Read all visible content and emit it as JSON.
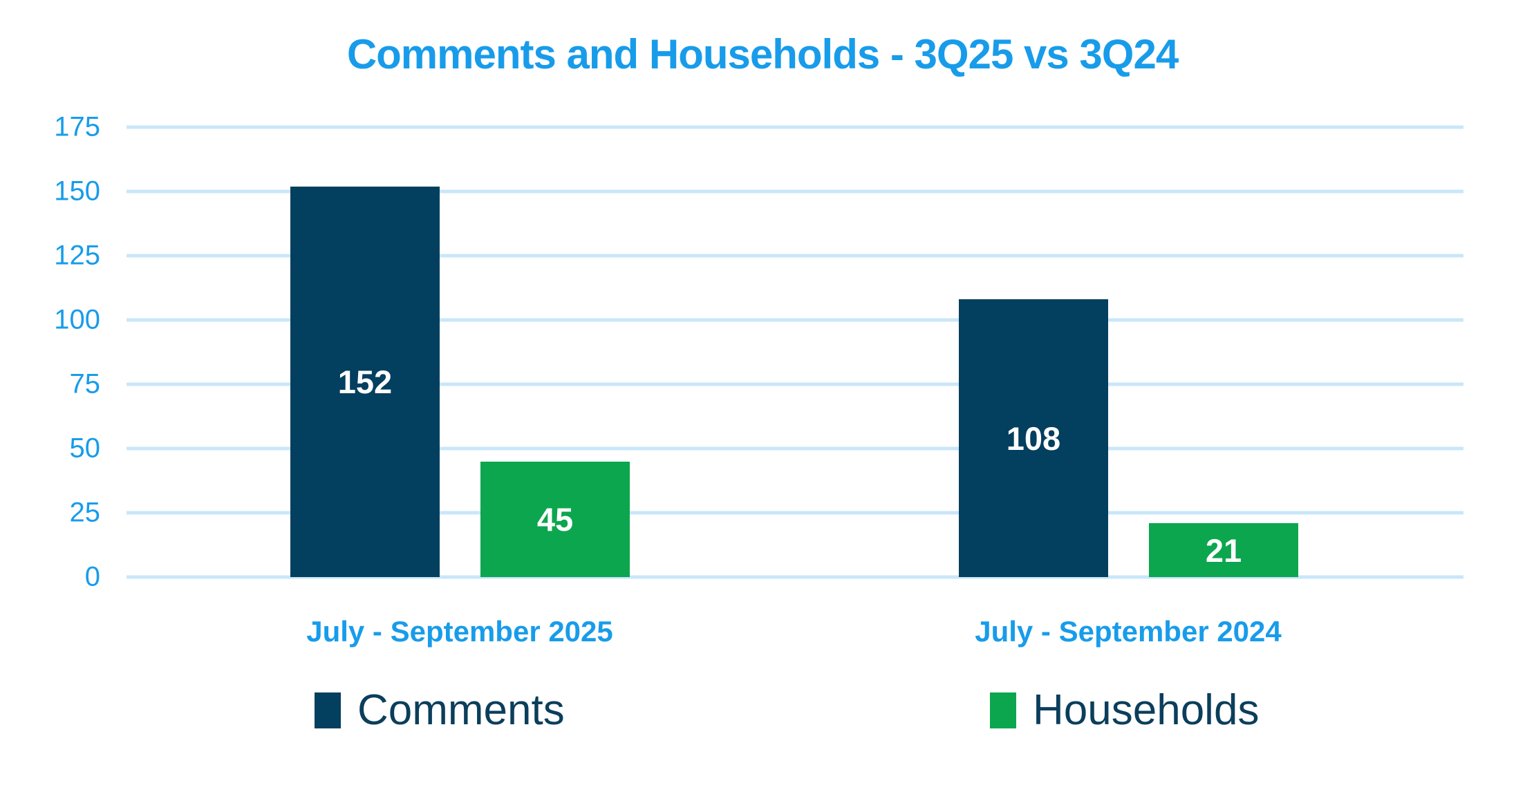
{
  "chart_data": {
    "type": "bar",
    "title": "Comments and Households - 3Q25 vs 3Q24",
    "categories": [
      "July - September 2025",
      "July - September 2024"
    ],
    "series": [
      {
        "name": "Comments",
        "color": "#033F5E",
        "values": [
          152,
          108
        ]
      },
      {
        "name": "Households",
        "color": "#0CA64E",
        "values": [
          45,
          21
        ]
      }
    ],
    "yticks": [
      0,
      25,
      50,
      75,
      100,
      125,
      150,
      175
    ],
    "ylim": [
      0,
      175
    ],
    "grid": true,
    "gridlines": "horizontal",
    "legend_position": "bottom",
    "bar_value_labels": [
      "152",
      "45",
      "108",
      "21"
    ],
    "colors": {
      "title": "#189CEA",
      "axis_labels": "#189CEA",
      "category_labels": "#189CEA",
      "gridline": "#C8E7FA",
      "bar_value_text": "#FFFFFF",
      "legend_text": "#0B3E5C",
      "background": "#FFFFFF"
    }
  }
}
